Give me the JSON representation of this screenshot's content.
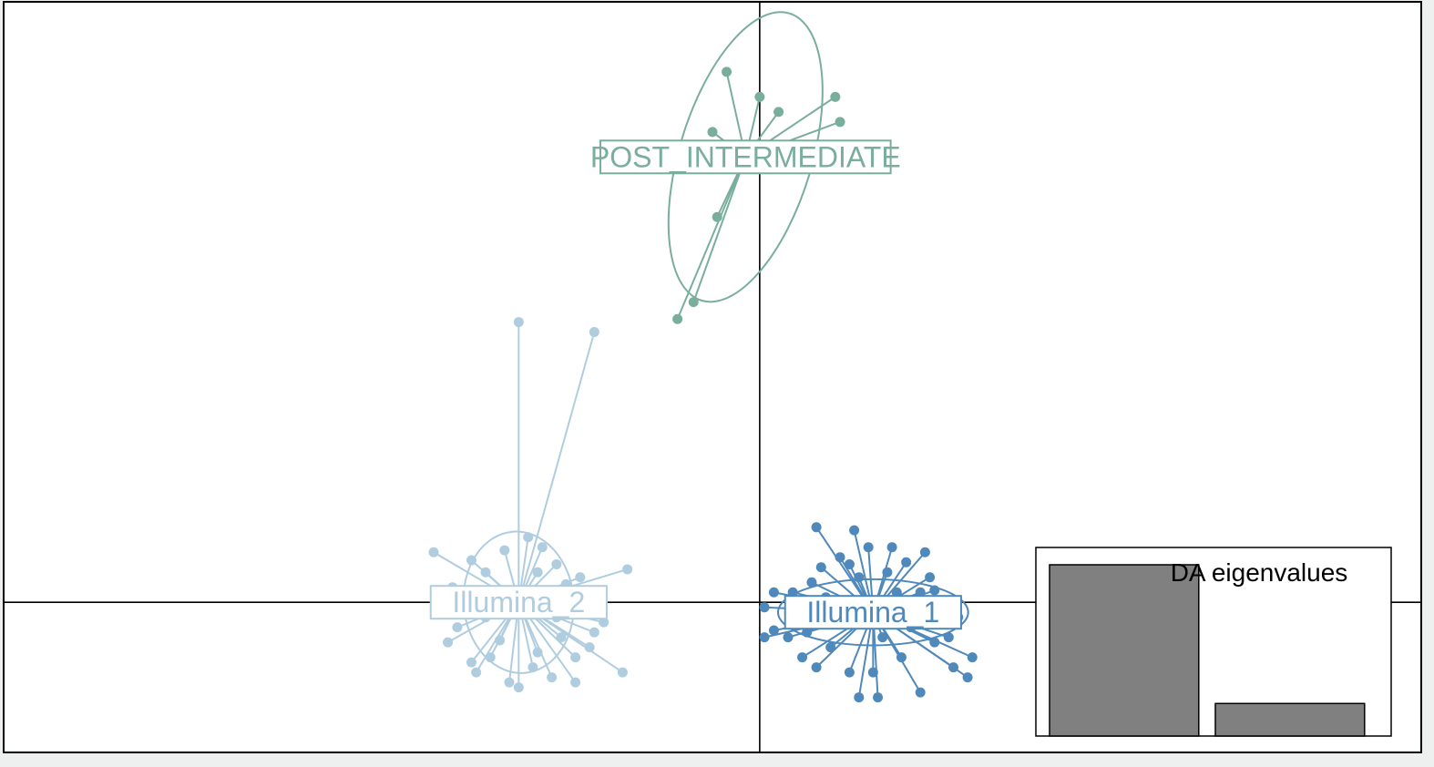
{
  "chart_data": {
    "type": "scatter",
    "title": "",
    "xlabel": "",
    "ylabel": "",
    "xlim": [
      -8,
      7
    ],
    "ylim": [
      -1.5,
      6
    ],
    "grid": false,
    "axes_lines": {
      "x": 0,
      "y": 0
    },
    "groups": [
      {
        "label": "POST_INTERMEDIATE",
        "color": "#7aae9c",
        "centroid": [
          -0.15,
          4.45
        ],
        "ellipse": {
          "rx": 1.5,
          "ry": 0.7,
          "angle": 73
        },
        "points": [
          [
            -0.35,
            5.3
          ],
          [
            0.0,
            5.05
          ],
          [
            0.2,
            4.9
          ],
          [
            0.8,
            5.05
          ],
          [
            0.85,
            4.8
          ],
          [
            -0.5,
            4.7
          ],
          [
            0.0,
            4.5
          ],
          [
            -0.45,
            3.85
          ],
          [
            -0.7,
            3.0
          ],
          [
            -0.87,
            2.83
          ]
        ]
      },
      {
        "label": "Illumina_2",
        "color": "#b0cde0",
        "centroid": [
          -2.55,
          0.0
        ],
        "ellipse": {
          "rx": 0.55,
          "ry": 0.75,
          "angle": 5
        },
        "points": [
          [
            -2.55,
            2.8
          ],
          [
            -1.75,
            2.7
          ],
          [
            -3.45,
            0.5
          ],
          [
            -3.05,
            0.42
          ],
          [
            -2.45,
            0.65
          ],
          [
            -2.15,
            0.38
          ],
          [
            -1.4,
            0.33
          ],
          [
            -2.7,
            0.52
          ],
          [
            -2.3,
            0.55
          ],
          [
            -3.25,
            0.15
          ],
          [
            -1.85,
            0.08
          ],
          [
            -3.1,
            0.0
          ],
          [
            -2.05,
            0.18
          ],
          [
            -2.9,
            0.3
          ],
          [
            -2.35,
            0.3
          ],
          [
            -3.3,
            -0.4
          ],
          [
            -2.85,
            -0.55
          ],
          [
            -2.35,
            -0.5
          ],
          [
            -1.95,
            -0.55
          ],
          [
            -1.45,
            -0.7
          ],
          [
            -3.0,
            -0.7
          ],
          [
            -2.65,
            -0.8
          ],
          [
            -2.2,
            -0.75
          ],
          [
            -1.95,
            -0.8
          ],
          [
            -2.55,
            -0.85
          ],
          [
            -3.2,
            -0.25
          ],
          [
            -1.65,
            -0.2
          ],
          [
            -2.75,
            -0.38
          ],
          [
            -2.1,
            -0.35
          ],
          [
            -2.5,
            -0.1
          ],
          [
            -3.05,
            -0.6
          ],
          [
            -2.4,
            -0.65
          ],
          [
            -1.8,
            -0.45
          ],
          [
            -3.15,
            -0.1
          ],
          [
            -1.75,
            -0.3
          ],
          [
            -2.6,
            0.1
          ],
          [
            -2.15,
            -0.15
          ],
          [
            -2.9,
            -0.15
          ],
          [
            -1.9,
            0.25
          ]
        ]
      },
      {
        "label": "Illumina_1",
        "color": "#4f88bb",
        "centroid": [
          1.2,
          -0.1
        ],
        "ellipse": {
          "rx": 0.95,
          "ry": 0.35,
          "angle": 0
        },
        "points": [
          [
            0.6,
            0.75
          ],
          [
            1.0,
            0.72
          ],
          [
            1.4,
            0.55
          ],
          [
            1.75,
            0.5
          ],
          [
            1.85,
            0.12
          ],
          [
            0.15,
            0.1
          ],
          [
            0.05,
            -0.05
          ],
          [
            2.1,
            -0.15
          ],
          [
            0.15,
            -0.28
          ],
          [
            0.05,
            -0.35
          ],
          [
            2.2,
            -0.75
          ],
          [
            2.25,
            -0.55
          ],
          [
            2.05,
            -0.65
          ],
          [
            1.7,
            -0.9
          ],
          [
            1.25,
            -0.95
          ],
          [
            1.05,
            -0.95
          ],
          [
            0.95,
            -0.7
          ],
          [
            0.6,
            -0.65
          ],
          [
            0.45,
            -0.55
          ],
          [
            0.3,
            -0.35
          ],
          [
            0.65,
            0.35
          ],
          [
            0.85,
            0.45
          ],
          [
            1.15,
            0.55
          ],
          [
            1.55,
            0.4
          ],
          [
            1.7,
            0.1
          ],
          [
            0.35,
            0.1
          ],
          [
            0.5,
            -0.3
          ],
          [
            0.75,
            -0.45
          ],
          [
            1.2,
            -0.7
          ],
          [
            1.5,
            -0.55
          ],
          [
            1.85,
            -0.4
          ],
          [
            2.0,
            -0.35
          ],
          [
            0.55,
            0.2
          ],
          [
            1.35,
            0.3
          ],
          [
            1.95,
            0.0
          ],
          [
            0.4,
            -0.15
          ],
          [
            1.05,
            0.25
          ],
          [
            1.6,
            -0.25
          ],
          [
            0.85,
            -0.2
          ],
          [
            1.3,
            -0.35
          ],
          [
            0.7,
            0.05
          ],
          [
            1.8,
            0.25
          ],
          [
            0.95,
            0.38
          ],
          [
            1.45,
            0.1
          ]
        ]
      }
    ],
    "inset": {
      "title": "DA eigenvalues",
      "type": "bar",
      "values": [
        1.0,
        0.19
      ],
      "color": "#808080"
    }
  }
}
